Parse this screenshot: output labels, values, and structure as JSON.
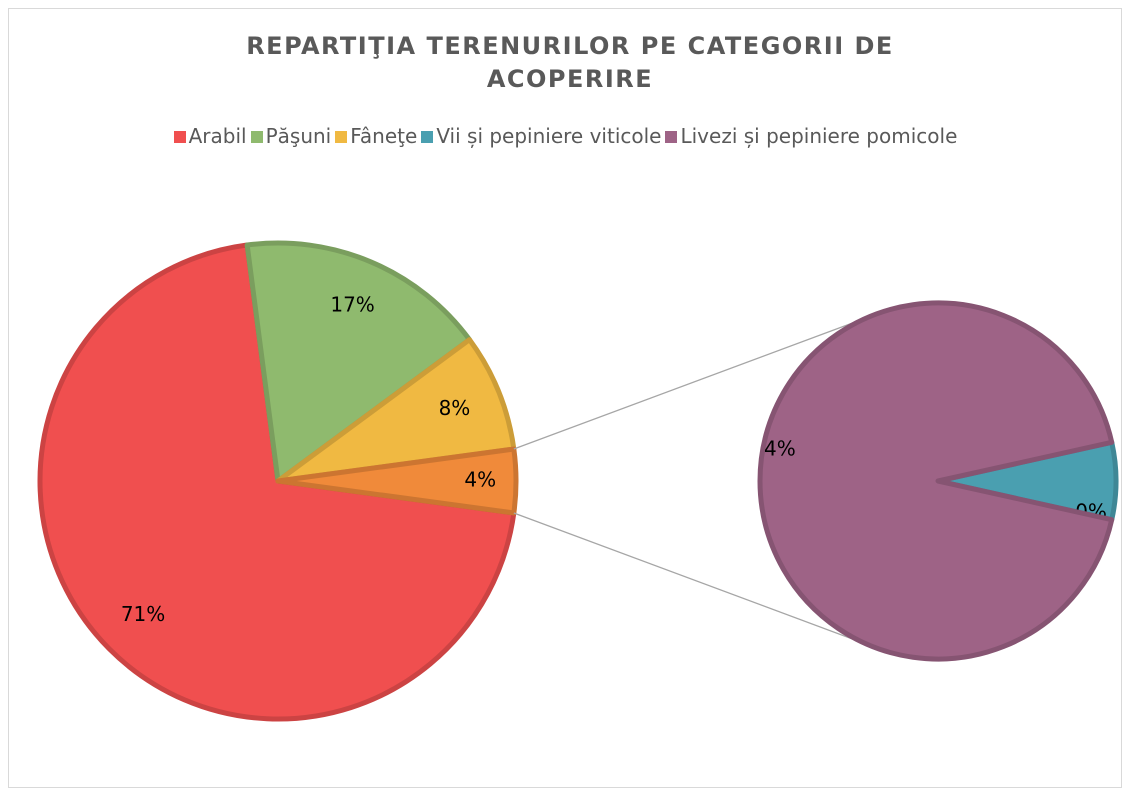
{
  "chart_data": {
    "type": "pie-of-pie",
    "title": "REPARTIŢIA TERENURILOR PE CATEGORII DE ACOPERIRE",
    "categories": [
      "Arabil",
      "Păşuni",
      "Fâneţe",
      "Vii și pepiniere viticole",
      "Livezi și pepiniere pomicole"
    ],
    "values": [
      71,
      17,
      8,
      0.3,
      4
    ],
    "value_labels": [
      "71%",
      "17%",
      "8%",
      "0%",
      "4%"
    ],
    "colors": [
      "#f04f4f",
      "#8fba6e",
      "#f0b942",
      "#4a9fb0",
      "#9e6386"
    ],
    "other": {
      "value": 4.3,
      "label": "4%",
      "color": "#f08a3a"
    },
    "second_plot_count": 2,
    "legend": "top"
  }
}
